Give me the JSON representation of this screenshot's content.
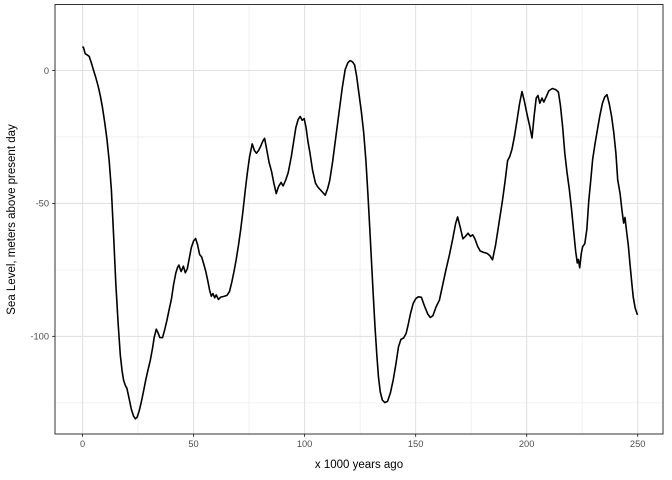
{
  "chart_data": {
    "type": "line",
    "xlabel": "x 1000 years ago",
    "ylabel": "Sea Level, meters above present day",
    "x_ticks": [
      0,
      50,
      100,
      150,
      200,
      250
    ],
    "x_minor_ticks": [
      25,
      75,
      125,
      175,
      225
    ],
    "y_ticks": [
      0,
      -50,
      -100
    ],
    "y_minor_ticks": [
      -25,
      -75,
      -125
    ],
    "xlim": [
      -12.4,
      261.4
    ],
    "ylim": [
      -136.7,
      24.8
    ],
    "grid": "major+minor",
    "legend": "none",
    "line_color": "#000000",
    "series": [
      {
        "name": "Sea Level",
        "points": [
          [
            0,
            9
          ],
          [
            0.5,
            8.5
          ],
          [
            1.2,
            6.3
          ],
          [
            2,
            5.9
          ],
          [
            3,
            5.3
          ],
          [
            4,
            2.8
          ],
          [
            5,
            0
          ],
          [
            6,
            -2.8
          ],
          [
            7,
            -5.8
          ],
          [
            8,
            -9.5
          ],
          [
            9,
            -14
          ],
          [
            10,
            -19.5
          ],
          [
            11,
            -26
          ],
          [
            12,
            -34
          ],
          [
            13,
            -45
          ],
          [
            14,
            -62
          ],
          [
            15,
            -80
          ],
          [
            16,
            -95
          ],
          [
            17,
            -107
          ],
          [
            17.8,
            -113
          ],
          [
            18.5,
            -116.5
          ],
          [
            19.3,
            -118.5
          ],
          [
            20,
            -119.5
          ],
          [
            21,
            -123.5
          ],
          [
            22,
            -127.5
          ],
          [
            23,
            -130
          ],
          [
            23.8,
            -131
          ],
          [
            24.6,
            -130.3
          ],
          [
            25.5,
            -128
          ],
          [
            26.5,
            -124.5
          ],
          [
            27.5,
            -120.5
          ],
          [
            28.5,
            -116.3
          ],
          [
            29.5,
            -112.6
          ],
          [
            30.5,
            -109
          ],
          [
            31.5,
            -104.5
          ],
          [
            32.3,
            -100.2
          ],
          [
            33.2,
            -97.3
          ],
          [
            34,
            -98.6
          ],
          [
            34.8,
            -100.4
          ],
          [
            36,
            -100.5
          ],
          [
            37,
            -97.5
          ],
          [
            38,
            -94
          ],
          [
            39,
            -90
          ],
          [
            40,
            -86
          ],
          [
            41,
            -80.5
          ],
          [
            42,
            -76.2
          ],
          [
            42.7,
            -74.2
          ],
          [
            43.4,
            -73.2
          ],
          [
            44.4,
            -75.6
          ],
          [
            45.4,
            -73.6
          ],
          [
            46.3,
            -76.1
          ],
          [
            47.2,
            -74.6
          ],
          [
            48.1,
            -70.6
          ],
          [
            49,
            -66.6
          ],
          [
            50,
            -64.1
          ],
          [
            50.9,
            -63.2
          ],
          [
            51.8,
            -65.6
          ],
          [
            52.7,
            -69.2
          ],
          [
            53.6,
            -70.1
          ],
          [
            54.5,
            -72.6
          ],
          [
            55.5,
            -75.6
          ],
          [
            56.4,
            -79.1
          ],
          [
            57.2,
            -82.6
          ],
          [
            58,
            -84.9
          ],
          [
            58.7,
            -83.9
          ],
          [
            59.5,
            -85.5
          ],
          [
            60.2,
            -84.4
          ],
          [
            61.2,
            -86.1
          ],
          [
            62.3,
            -85.2
          ],
          [
            63.5,
            -85
          ],
          [
            65,
            -84.6
          ],
          [
            66.2,
            -83.1
          ],
          [
            67.2,
            -79.6
          ],
          [
            68.2,
            -75.6
          ],
          [
            69.2,
            -71.1
          ],
          [
            70.2,
            -65.9
          ],
          [
            71.2,
            -60.1
          ],
          [
            72.2,
            -53.1
          ],
          [
            73.2,
            -45.6
          ],
          [
            74.2,
            -38.6
          ],
          [
            75.2,
            -32.6
          ],
          [
            76.4,
            -27.6
          ],
          [
            77.4,
            -30.1
          ],
          [
            78.3,
            -31.1
          ],
          [
            79.2,
            -30.2
          ],
          [
            80.2,
            -28.6
          ],
          [
            81.2,
            -26.6
          ],
          [
            82,
            -25.5
          ],
          [
            83,
            -29.9
          ],
          [
            84,
            -34.6
          ],
          [
            85.1,
            -37.9
          ],
          [
            86.1,
            -42.1
          ],
          [
            87.2,
            -46.3
          ],
          [
            88.3,
            -43.6
          ],
          [
            89.4,
            -42.1
          ],
          [
            90.3,
            -43.4
          ],
          [
            91.4,
            -41.4
          ],
          [
            92.6,
            -38.4
          ],
          [
            94,
            -32.4
          ],
          [
            95.1,
            -26.6
          ],
          [
            96.1,
            -21.4
          ],
          [
            97.1,
            -18.4
          ],
          [
            98,
            -17.3
          ],
          [
            98.9,
            -18.7
          ],
          [
            99.8,
            -18.1
          ],
          [
            100.7,
            -21.6
          ],
          [
            101.5,
            -26.6
          ],
          [
            102.4,
            -30.9
          ],
          [
            103.6,
            -37.6
          ],
          [
            104.9,
            -42.4
          ],
          [
            105.9,
            -43.8
          ],
          [
            107.1,
            -44.9
          ],
          [
            108.2,
            -45.9
          ],
          [
            109.3,
            -46.9
          ],
          [
            110.4,
            -44.4
          ],
          [
            111.3,
            -41.4
          ],
          [
            112.6,
            -34.4
          ],
          [
            114,
            -25.4
          ],
          [
            115.5,
            -15.9
          ],
          [
            117,
            -6.4
          ],
          [
            118.3,
            0.4
          ],
          [
            119.5,
            2.9
          ],
          [
            120.5,
            3.7
          ],
          [
            121.6,
            3.2
          ],
          [
            122.5,
            2.1
          ],
          [
            123.4,
            -2.1
          ],
          [
            124.5,
            -8.9
          ],
          [
            125.6,
            -15.6
          ],
          [
            126.6,
            -23.4
          ],
          [
            127.6,
            -33.9
          ],
          [
            128.5,
            -46.4
          ],
          [
            129.3,
            -58.9
          ],
          [
            130.1,
            -71.1
          ],
          [
            130.9,
            -84.1
          ],
          [
            131.7,
            -96.4
          ],
          [
            132.5,
            -106.9
          ],
          [
            133.3,
            -115.4
          ],
          [
            134.1,
            -120.9
          ],
          [
            135,
            -123.9
          ],
          [
            136.1,
            -124.9
          ],
          [
            137.4,
            -124.4
          ],
          [
            138.6,
            -121.4
          ],
          [
            139.9,
            -116.4
          ],
          [
            141.1,
            -110.4
          ],
          [
            142.3,
            -103.9
          ],
          [
            143.4,
            -101.1
          ],
          [
            144.6,
            -100.6
          ],
          [
            145.7,
            -98.9
          ],
          [
            146.7,
            -95.4
          ],
          [
            147.7,
            -91.4
          ],
          [
            148.9,
            -87.6
          ],
          [
            150.1,
            -85.8
          ],
          [
            151.2,
            -85.1
          ],
          [
            152.6,
            -85.3
          ],
          [
            154,
            -88.6
          ],
          [
            155.5,
            -91.6
          ],
          [
            156.6,
            -92.9
          ],
          [
            157.8,
            -92.2
          ],
          [
            159.2,
            -88.9
          ],
          [
            160.7,
            -86.4
          ],
          [
            162.2,
            -80.6
          ],
          [
            163.7,
            -74.9
          ],
          [
            165.2,
            -69.4
          ],
          [
            166.7,
            -63.4
          ],
          [
            168,
            -57.6
          ],
          [
            168.9,
            -55.1
          ],
          [
            170.1,
            -59.1
          ],
          [
            171.3,
            -63.3
          ],
          [
            172.4,
            -62.4
          ],
          [
            173.6,
            -61.2
          ],
          [
            174.7,
            -62.4
          ],
          [
            175.7,
            -61.8
          ],
          [
            176.7,
            -63.3
          ],
          [
            177.9,
            -66.1
          ],
          [
            179.1,
            -67.9
          ],
          [
            180.6,
            -68.4
          ],
          [
            182.2,
            -68.8
          ],
          [
            183.4,
            -69.6
          ],
          [
            184.6,
            -71.2
          ],
          [
            186,
            -65.6
          ],
          [
            187.5,
            -57.6
          ],
          [
            189,
            -49.6
          ],
          [
            190.3,
            -41.6
          ],
          [
            191.4,
            -33.9
          ],
          [
            192.4,
            -32.3
          ],
          [
            193.4,
            -29.6
          ],
          [
            194.5,
            -24.9
          ],
          [
            195.7,
            -18.6
          ],
          [
            196.8,
            -12.6
          ],
          [
            197.9,
            -7.9
          ],
          [
            199,
            -11.6
          ],
          [
            200.2,
            -16.6
          ],
          [
            201.3,
            -20.6
          ],
          [
            202.4,
            -25.4
          ],
          [
            203.4,
            -16.9
          ],
          [
            204.3,
            -10.4
          ],
          [
            205.1,
            -9.4
          ],
          [
            205.9,
            -12.3
          ],
          [
            206.9,
            -10.4
          ],
          [
            207.7,
            -11.9
          ],
          [
            208.8,
            -9.9
          ],
          [
            210,
            -7.6
          ],
          [
            211.6,
            -6.8
          ],
          [
            213.1,
            -7.2
          ],
          [
            214.3,
            -8.1
          ],
          [
            215.2,
            -13.1
          ],
          [
            216.2,
            -21.1
          ],
          [
            217.2,
            -31.1
          ],
          [
            218.2,
            -38.6
          ],
          [
            219.2,
            -44.6
          ],
          [
            220.2,
            -52.1
          ],
          [
            221.2,
            -60.6
          ],
          [
            222.1,
            -68.1
          ],
          [
            222.8,
            -72.4
          ],
          [
            223.3,
            -71.1
          ],
          [
            223.9,
            -74.2
          ],
          [
            224.6,
            -68.8
          ],
          [
            225.2,
            -66.3
          ],
          [
            226.2,
            -65.1
          ],
          [
            227.1,
            -59.9
          ],
          [
            228,
            -48.9
          ],
          [
            228.9,
            -41.1
          ],
          [
            229.7,
            -33.6
          ],
          [
            230.8,
            -27.6
          ],
          [
            231.9,
            -22.1
          ],
          [
            233,
            -16.9
          ],
          [
            234.1,
            -12.4
          ],
          [
            235.2,
            -9.9
          ],
          [
            236.2,
            -9.1
          ],
          [
            237.2,
            -12.6
          ],
          [
            238.2,
            -17.1
          ],
          [
            239.2,
            -23.1
          ],
          [
            240.2,
            -31.1
          ],
          [
            241,
            -41.1
          ],
          [
            242.1,
            -46.3
          ],
          [
            242.9,
            -52.4
          ],
          [
            243.2,
            -54.4
          ],
          [
            243.7,
            -57.4
          ],
          [
            244.3,
            -55.3
          ],
          [
            244.9,
            -59.9
          ],
          [
            245.8,
            -66.1
          ],
          [
            246.5,
            -72.4
          ],
          [
            247.2,
            -78.8
          ],
          [
            248,
            -85.1
          ],
          [
            248.9,
            -89.4
          ],
          [
            249.9,
            -91.9
          ]
        ]
      }
    ]
  },
  "style": {
    "page_bg": "#ffffff",
    "panel_bg": "#ffffff",
    "grid_major": "#e2e2e2",
    "grid_minor": "#ededed",
    "panel_border": "#333333",
    "tick_color": "#333333",
    "tick_label_color": "#4d4d4d",
    "axis_title_color": "#000000",
    "line_color": "#000000"
  }
}
